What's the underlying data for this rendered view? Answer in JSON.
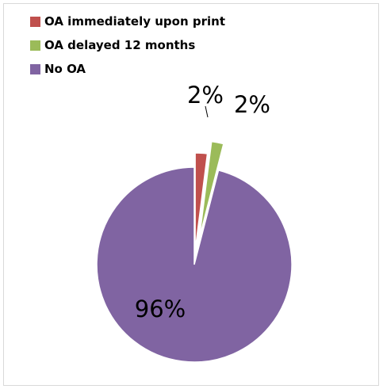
{
  "chart_data": {
    "type": "pie",
    "title": "",
    "legend_position": "top-left",
    "exploded": true,
    "start_angle_deg": 0,
    "direction": "clockwise",
    "slices": [
      {
        "label": "OA immediately upon print",
        "value": 2,
        "display": "2%",
        "color": "#C0504D"
      },
      {
        "label": "OA delayed 12 months",
        "value": 2,
        "display": "2%",
        "color": "#9BBB59"
      },
      {
        "label": "No OA",
        "value": 96,
        "display": "96%",
        "color": "#8064A2"
      }
    ]
  }
}
